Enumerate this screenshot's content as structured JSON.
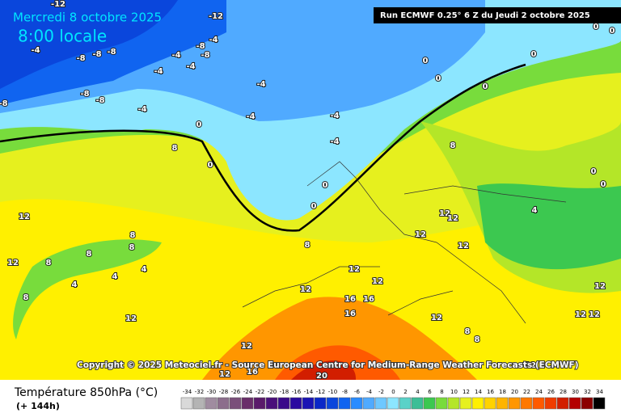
{
  "header": {
    "date": "Mercredi 8 octobre 2025",
    "time": "8:00 locale",
    "run": "Run ECMWF 0.25° 6 Z du Jeudi 2 octobre 2025"
  },
  "copyright": "Copyright © 2025 Meteociel.fr - Source European Centre for Medium-Range Weather Forecasts (ECMWF)",
  "map": {
    "contour_labels": [
      -12,
      -12,
      -4,
      -8,
      -8,
      -8,
      -4,
      -8,
      -4,
      -8,
      -4,
      -4,
      -8,
      -8,
      -8,
      -4,
      -4,
      -4,
      0,
      -4,
      -4,
      0,
      0,
      0,
      0,
      0,
      0,
      0,
      0,
      8,
      0,
      12,
      12,
      8,
      8,
      8,
      8,
      4,
      4,
      4,
      8,
      8,
      12,
      12,
      12,
      16,
      16,
      16,
      12,
      12,
      12,
      12,
      12,
      12,
      12,
      12,
      12,
      4,
      8,
      8,
      8,
      12,
      16,
      12,
      20,
      12,
      0,
      0
    ]
  },
  "legend": {
    "title": "Température 850hPa (°C)",
    "lead_time": "(+ 144h)",
    "ticks": [
      -34,
      -32,
      -30,
      -28,
      -26,
      -24,
      -22,
      -20,
      -18,
      -16,
      -14,
      -12,
      -10,
      -8,
      -6,
      -4,
      -2,
      0,
      2,
      4,
      6,
      8,
      10,
      12,
      14,
      16,
      18,
      20,
      22,
      24,
      26,
      28,
      30,
      32,
      34
    ],
    "colors": [
      "#d9d9d9",
      "#b4b4b4",
      "#a08ca0",
      "#8c6e8c",
      "#7a4f7a",
      "#6a2f6a",
      "#5a1a6a",
      "#4a0f7a",
      "#3a0a8a",
      "#2a0aa0",
      "#1a14b4",
      "#0a28c8",
      "#0a46dc",
      "#1064f0",
      "#2a8cff",
      "#50aaff",
      "#6ec8ff",
      "#8ce6ff",
      "#5ad2c8",
      "#3cbe96",
      "#3cc850",
      "#78dc3c",
      "#b4e628",
      "#e6f01e",
      "#fff000",
      "#ffd200",
      "#ffb400",
      "#ff9600",
      "#ff7800",
      "#ff5a00",
      "#f03c00",
      "#d21e00",
      "#b40000",
      "#8c0000",
      "#000000"
    ]
  }
}
